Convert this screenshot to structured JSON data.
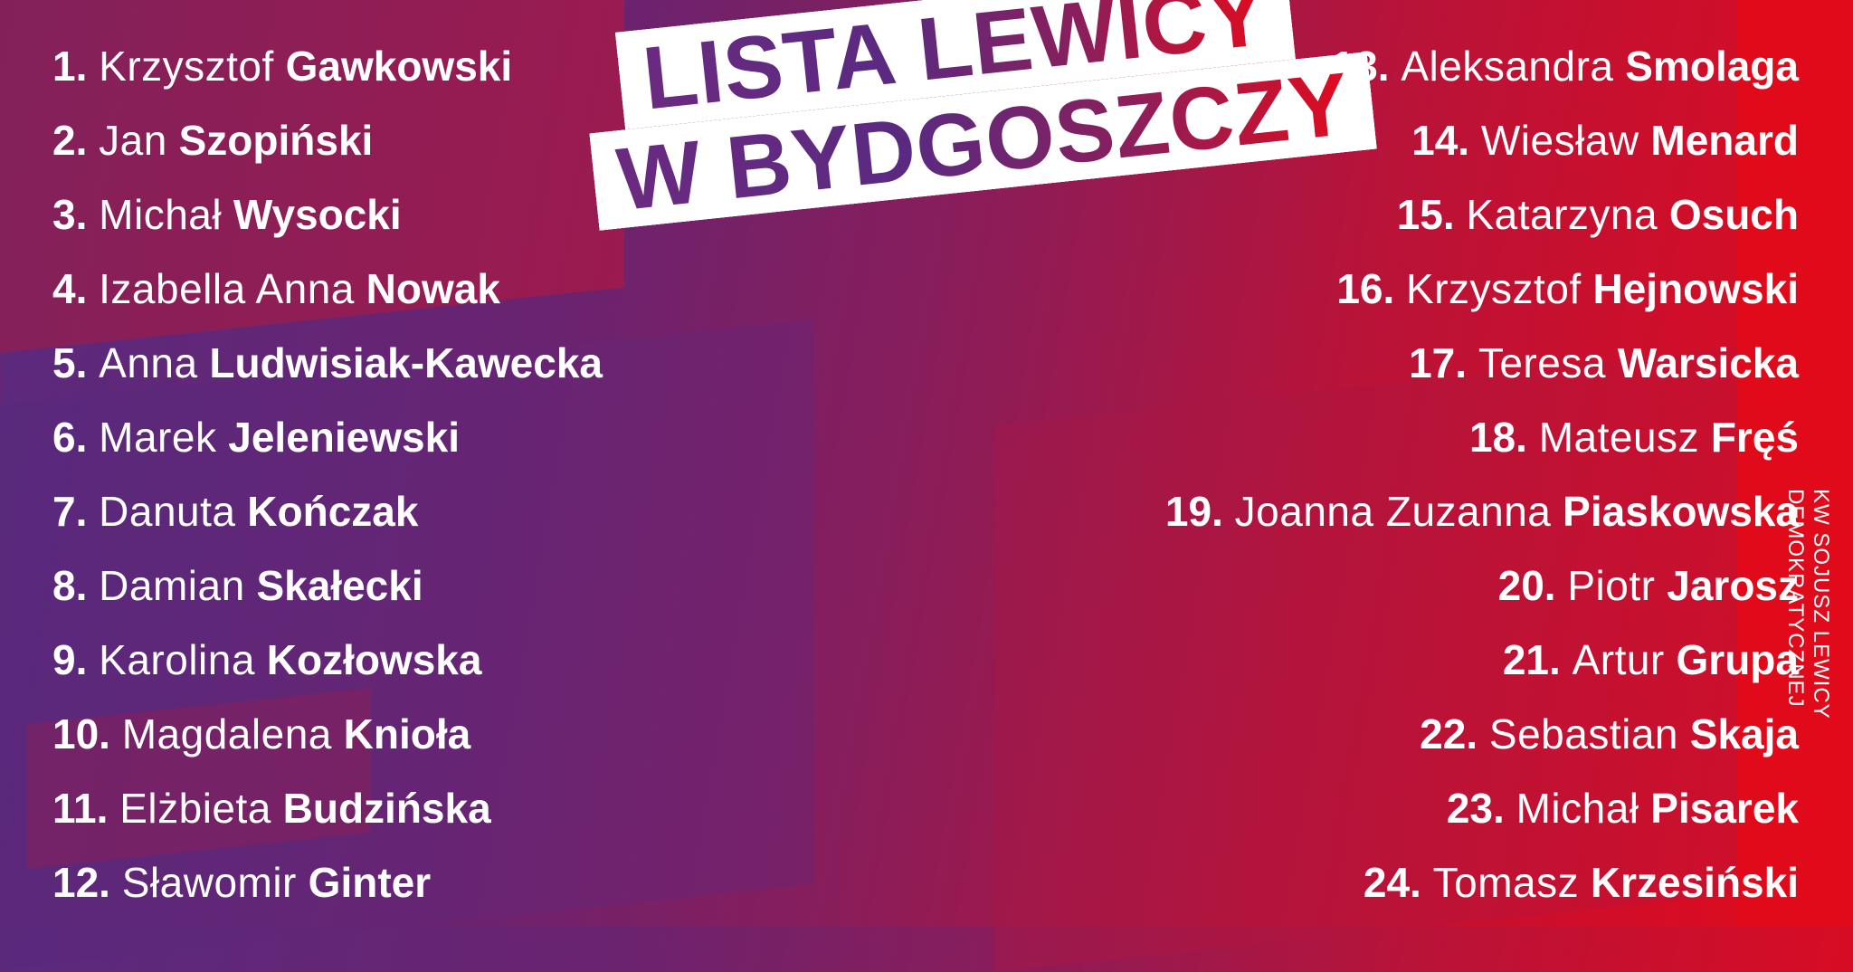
{
  "title": {
    "line1": "LISTA LEWICY",
    "line2": "W BYDGOSZCZY"
  },
  "committee": "KW SOJUSZ LEWICY DEMOKRATYCZNEJ",
  "colors": {
    "purple": "#5a2a7e",
    "red": "#e20a1c",
    "text": "#ffffff"
  },
  "left_candidates": [
    {
      "num": "1.",
      "first": "Krzysztof",
      "last": "Gawkowski"
    },
    {
      "num": "2.",
      "first": "Jan",
      "last": "Szopiński"
    },
    {
      "num": "3.",
      "first": "Michał",
      "last": "Wysocki"
    },
    {
      "num": "4.",
      "first": "Izabella Anna",
      "last": "Nowak"
    },
    {
      "num": "5.",
      "first": "Anna",
      "last": "Ludwisiak-Kawecka"
    },
    {
      "num": "6.",
      "first": "Marek",
      "last": "Jeleniewski"
    },
    {
      "num": "7.",
      "first": "Danuta",
      "last": "Kończak"
    },
    {
      "num": "8.",
      "first": "Damian",
      "last": "Skałecki"
    },
    {
      "num": "9.",
      "first": "Karolina",
      "last": "Kozłowska"
    },
    {
      "num": "10.",
      "first": "Magdalena",
      "last": "Knioła"
    },
    {
      "num": "11.",
      "first": "Elżbieta",
      "last": "Budzińska"
    },
    {
      "num": "12.",
      "first": "Sławomir",
      "last": "Ginter"
    }
  ],
  "right_candidates": [
    {
      "num": "13.",
      "first": "Aleksandra",
      "last": "Smolaga"
    },
    {
      "num": "14.",
      "first": "Wiesław",
      "last": "Menard"
    },
    {
      "num": "15.",
      "first": "Katarzyna",
      "last": "Osuch"
    },
    {
      "num": "16.",
      "first": "Krzysztof",
      "last": "Hejnowski"
    },
    {
      "num": "17.",
      "first": "Teresa",
      "last": "Warsicka"
    },
    {
      "num": "18.",
      "first": "Mateusz",
      "last": "Fręś"
    },
    {
      "num": "19.",
      "first": "Joanna Zuzanna",
      "last": "Piaskowska"
    },
    {
      "num": "20.",
      "first": "Piotr",
      "last": "Jarosz"
    },
    {
      "num": "21.",
      "first": "Artur",
      "last": "Grupa"
    },
    {
      "num": "22.",
      "first": "Sebastian",
      "last": "Skaja"
    },
    {
      "num": "23.",
      "first": "Michał",
      "last": "Pisarek"
    },
    {
      "num": "24.",
      "first": "Tomasz",
      "last": "Krzesiński"
    }
  ]
}
